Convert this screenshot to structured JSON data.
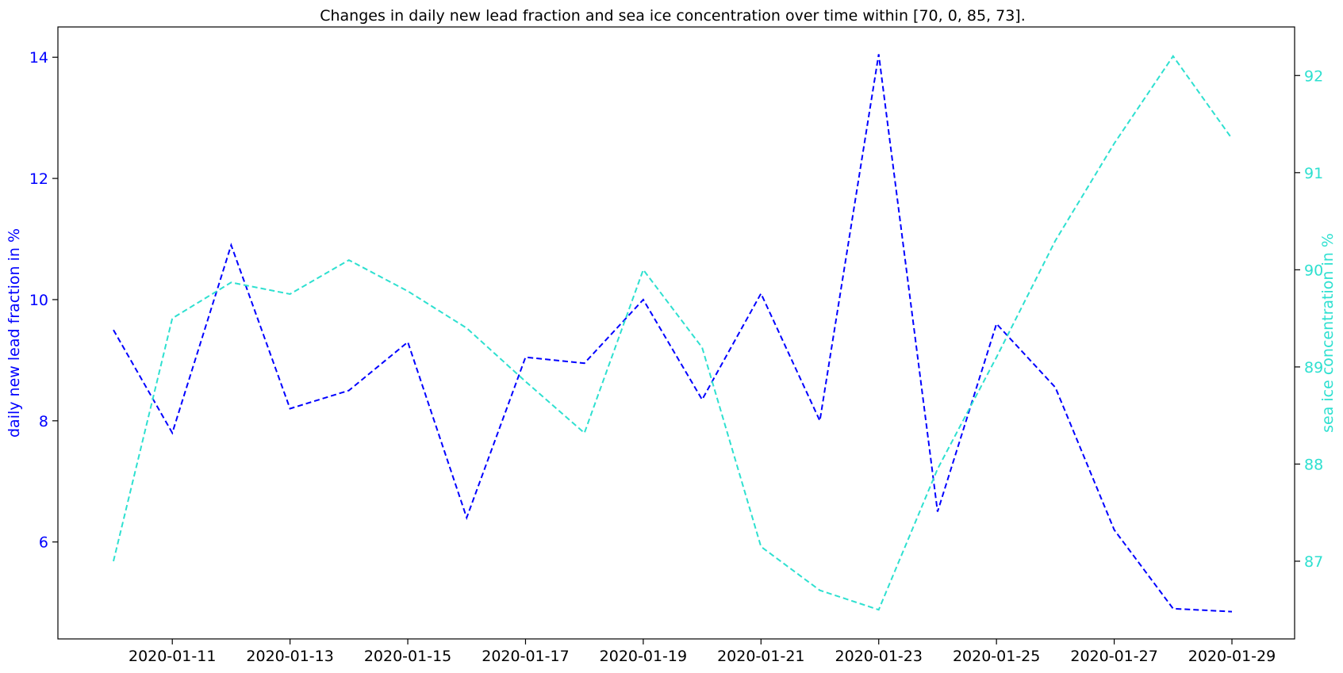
{
  "chart_data": {
    "type": "line",
    "title": "Changes in daily new lead fraction and sea ice concentration over time within [70, 0, 85, 73].",
    "x": [
      "2020-01-10",
      "2020-01-11",
      "2020-01-12",
      "2020-01-13",
      "2020-01-14",
      "2020-01-15",
      "2020-01-16",
      "2020-01-17",
      "2020-01-18",
      "2020-01-19",
      "2020-01-20",
      "2020-01-21",
      "2020-01-22",
      "2020-01-23",
      "2020-01-24",
      "2020-01-25",
      "2020-01-26",
      "2020-01-27",
      "2020-01-28",
      "2020-01-29"
    ],
    "xtick_labels": [
      "2020-01-11",
      "2020-01-13",
      "2020-01-15",
      "2020-01-17",
      "2020-01-19",
      "2020-01-21",
      "2020-01-23",
      "2020-01-25",
      "2020-01-27",
      "2020-01-29"
    ],
    "xlabel": "",
    "y_left": {
      "label": "daily new lead fraction in %",
      "ylim": [
        4.4,
        14.5
      ],
      "ticks": [
        6,
        8,
        10,
        12,
        14
      ],
      "color": "#0000ff"
    },
    "y_right": {
      "label": "sea ice concentration in %",
      "ylim": [
        86.2,
        92.5
      ],
      "ticks": [
        87,
        88,
        89,
        90,
        91,
        92
      ],
      "color": "#2ee0d0"
    },
    "series": [
      {
        "axis": "left",
        "color": "#0000ff",
        "linestyle": "dashed",
        "values": [
          9.5,
          7.8,
          10.9,
          8.2,
          8.5,
          9.3,
          6.4,
          9.05,
          8.95,
          10.0,
          8.35,
          10.1,
          8.0,
          14.05,
          6.5,
          9.6,
          8.55,
          6.2,
          4.9,
          4.85
        ]
      },
      {
        "axis": "right",
        "color": "#2ee0d0",
        "linestyle": "dashed",
        "values": [
          87.0,
          89.5,
          89.87,
          89.75,
          90.1,
          89.78,
          89.4,
          88.85,
          88.32,
          90.0,
          89.2,
          87.15,
          86.7,
          86.5,
          87.95,
          89.1,
          90.3,
          91.3,
          92.2,
          91.35
        ]
      }
    ],
    "grid": false,
    "legend": "none"
  }
}
